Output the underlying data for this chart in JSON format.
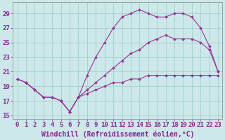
{
  "line1_x": [
    0,
    1,
    2,
    3,
    4,
    5,
    6,
    7,
    8,
    9,
    10,
    11,
    12,
    13,
    14,
    15,
    16,
    17,
    18,
    19,
    20,
    21,
    22,
    23
  ],
  "line1_y": [
    20.0,
    19.5,
    18.5,
    17.5,
    17.5,
    17.0,
    15.5,
    17.5,
    20.5,
    23.0,
    25.0,
    27.0,
    28.5,
    29.0,
    29.5,
    29.0,
    28.5,
    28.5,
    29.0,
    29.0,
    28.5,
    27.0,
    24.5,
    21.0
  ],
  "line2_x": [
    0,
    1,
    2,
    3,
    4,
    5,
    6,
    7,
    8,
    9,
    10,
    11,
    12,
    13,
    14,
    15,
    16,
    17,
    18,
    19,
    20,
    21,
    22,
    23
  ],
  "line2_y": [
    20.0,
    19.5,
    18.5,
    17.5,
    17.5,
    17.0,
    15.5,
    17.5,
    18.5,
    19.5,
    20.5,
    21.5,
    22.5,
    23.5,
    24.0,
    25.0,
    25.5,
    26.0,
    25.5,
    25.5,
    25.5,
    25.0,
    24.0,
    21.0
  ],
  "line3_x": [
    0,
    1,
    2,
    3,
    4,
    5,
    6,
    7,
    8,
    9,
    10,
    11,
    12,
    13,
    14,
    15,
    16,
    17,
    18,
    19,
    20,
    21,
    22,
    23
  ],
  "line3_y": [
    20.0,
    19.5,
    18.5,
    17.5,
    17.5,
    17.0,
    15.5,
    17.5,
    18.0,
    18.5,
    19.0,
    19.5,
    19.5,
    20.0,
    20.0,
    20.5,
    20.5,
    20.5,
    20.5,
    20.5,
    20.5,
    20.5,
    20.5,
    20.5
  ],
  "line_color": "#993399",
  "bg_color": "#cce8e8",
  "grid_color": "#99cccc",
  "xlabel": "Windchill (Refroidissement éolien,°C)",
  "ylabel_ticks": [
    15,
    17,
    19,
    21,
    23,
    25,
    27,
    29
  ],
  "xlim": [
    -0.5,
    23.5
  ],
  "ylim": [
    14.5,
    30.5
  ],
  "xtick_labels": [
    "0",
    "1",
    "2",
    "3",
    "4",
    "5",
    "6",
    "7",
    "8",
    "9",
    "10",
    "11",
    "12",
    "13",
    "14",
    "15",
    "16",
    "17",
    "18",
    "19",
    "20",
    "21",
    "22",
    "23"
  ],
  "font_color": "#882299",
  "tick_fontsize": 6.5,
  "xlabel_fontsize": 7.0
}
